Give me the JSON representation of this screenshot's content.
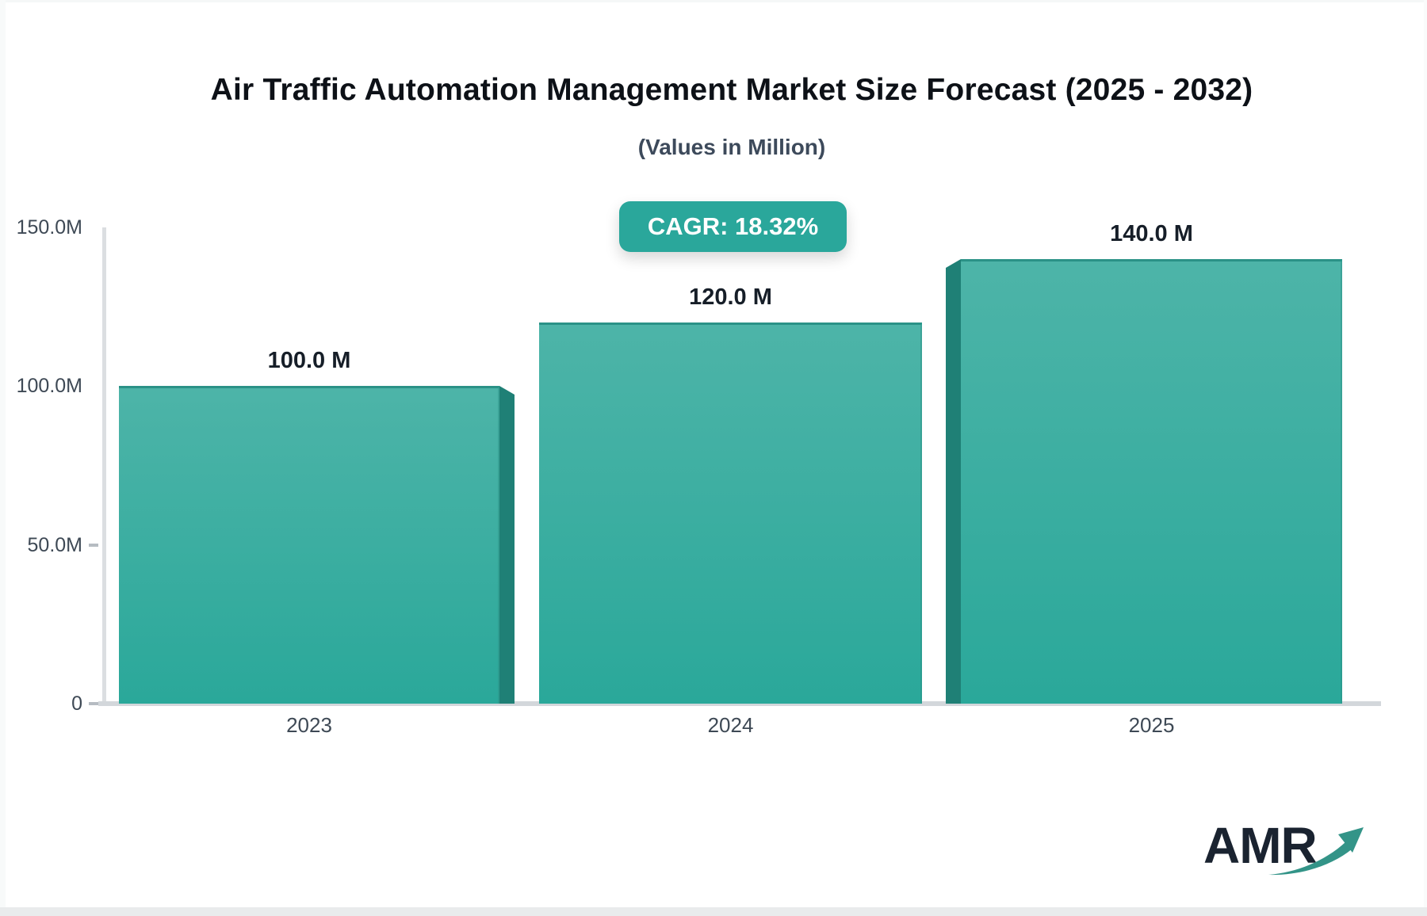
{
  "chart_data": {
    "type": "bar",
    "title": "Air Traffic Automation Management Market Size Forecast (2025 - 2032)",
    "subtitle": "(Values in Million)",
    "annotation": "CAGR: 18.32%",
    "categories": [
      "2023",
      "2024",
      "2025"
    ],
    "values": [
      100,
      120,
      140
    ],
    "unit": "Million",
    "value_labels": [
      "100.0 M",
      "120.0 M",
      "140.0 M"
    ],
    "y_ticks": [
      {
        "label": "150.0M",
        "value": 150,
        "dash": false
      },
      {
        "label": "100.0M",
        "value": 100,
        "dash": false
      },
      {
        "label": "50.0M",
        "value": 50,
        "dash": true
      },
      {
        "label": "0",
        "value": 0,
        "dash": true
      }
    ],
    "ylim": [
      0,
      150
    ],
    "xlabel": "",
    "ylabel": "",
    "grid": false,
    "legend": "none",
    "bar_color_top": "#4db4a8",
    "bar_color_bottom": "#2aa89a",
    "bar_side_color": "#1f8076",
    "accent_color": "#2aa79b"
  },
  "badge": {
    "color": "#2aa79b"
  },
  "logo": {
    "text": "AMR"
  }
}
